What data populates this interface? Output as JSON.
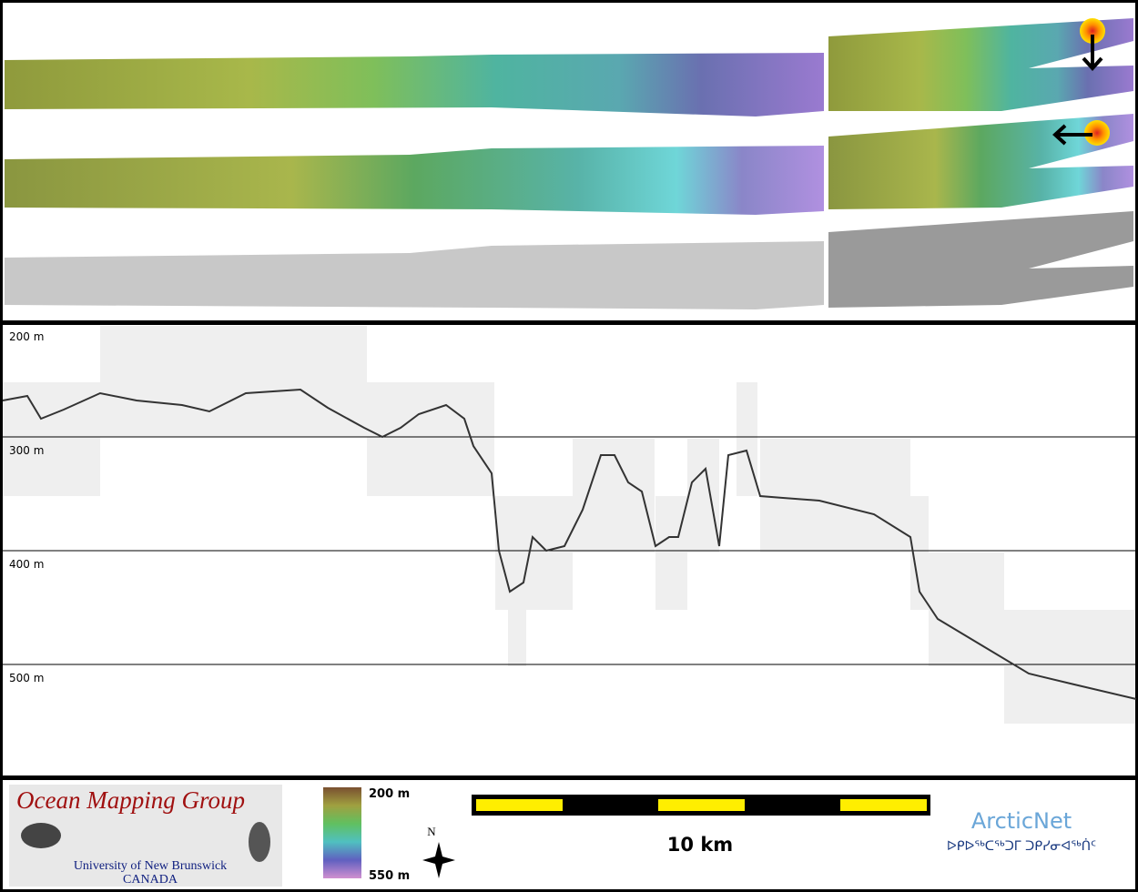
{
  "profile": {
    "depth_labels": [
      "200 m",
      "300 m",
      "400 m",
      "500 m"
    ]
  },
  "legend": {
    "logo_title": "Ocean Mapping Group",
    "logo_university": "University of New Brunswick",
    "logo_country": "CANADA",
    "colorbar_top": "200 m",
    "colorbar_bottom": "550 m",
    "north": "N",
    "scale": "10 km",
    "partner": "ArcticNet",
    "partner_inuktitut": "ᐅᑭᐅᖅᑕᖅᑐᒥ ᑐᑭᓯᓂᐊᖅᑏᑦ"
  }
}
